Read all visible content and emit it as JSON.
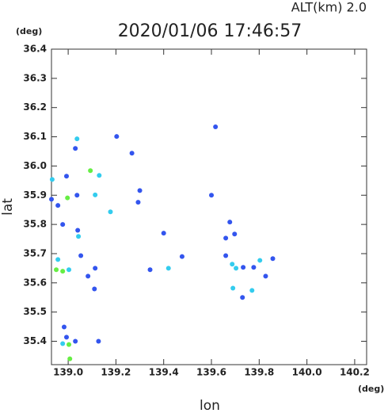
{
  "chart_data": {
    "type": "scatter",
    "title": "2020/01/06 17:46:57",
    "subtitle": "ALT(km)  2.0",
    "x_label": "lon",
    "y_label": "lat",
    "x_unit": "(deg)",
    "y_unit": "(deg)",
    "xlim": [
      138.93,
      140.25
    ],
    "ylim": [
      35.32,
      36.4
    ],
    "xticks": [
      {
        "value": 139,
        "label": "139.0"
      },
      139.2,
      139.4,
      139.6,
      139.8,
      {
        "value": 140,
        "label": "140.0"
      },
      140.2
    ],
    "yticks": [
      35.4,
      35.5,
      35.6,
      35.7,
      35.8,
      35.9,
      {
        "value": 36,
        "label": "36.0"
      },
      36.1,
      36.2,
      36.3,
      36.4
    ],
    "x": [
      139.037,
      139.03,
      138.993,
      138.933,
      139.093,
      139.13,
      138.997,
      139.037,
      139.113,
      138.93,
      138.957,
      138.977,
      139.04,
      139.043,
      138.957,
      138.95,
      138.977,
      139.003,
      139.053,
      139.113,
      139.083,
      139.11,
      138.983,
      138.993,
      138.977,
      139.003,
      139.03,
      139.007,
      139.127,
      139.203,
      139.267,
      139.3,
      139.293,
      139.177,
      139.4,
      139.477,
      139.42,
      139.343,
      139.617,
      139.6,
      139.66,
      139.697,
      139.66,
      139.687,
      139.703,
      139.733,
      139.69,
      139.73,
      139.77,
      139.803,
      139.777,
      139.857,
      139.827,
      139.677
    ],
    "y": [
      36.093,
      36.06,
      35.965,
      35.954,
      35.984,
      35.968,
      35.891,
      35.9,
      35.901,
      35.886,
      35.865,
      35.8,
      35.78,
      35.759,
      35.68,
      35.645,
      35.64,
      35.645,
      35.693,
      35.65,
      35.623,
      35.579,
      35.449,
      35.414,
      35.392,
      35.389,
      35.4,
      35.34,
      35.4,
      36.101,
      36.044,
      35.916,
      35.876,
      35.843,
      35.77,
      35.69,
      35.65,
      35.645,
      36.134,
      35.9,
      35.753,
      35.767,
      35.693,
      35.664,
      35.65,
      35.653,
      35.582,
      35.55,
      35.574,
      35.677,
      35.653,
      35.683,
      35.623,
      35.808
    ],
    "colors": [
      "#33ccee",
      "#3355ee",
      "#3355ee",
      "#33ccee",
      "#66ee44",
      "#33ccee",
      "#66ee44",
      "#3355ee",
      "#33ccee",
      "#3355ee",
      "#3355ee",
      "#3355ee",
      "#3355ee",
      "#33ccee",
      "#33ccee",
      "#66ee44",
      "#66ee44",
      "#33ccee",
      "#3355ee",
      "#3355ee",
      "#3355ee",
      "#3355ee",
      "#3355ee",
      "#3355ee",
      "#33ccee",
      "#66ee44",
      "#3355ee",
      "#66ee44",
      "#3355ee",
      "#3355ee",
      "#3355ee",
      "#3355ee",
      "#3355ee",
      "#33ccee",
      "#3355ee",
      "#3355ee",
      "#33ccee",
      "#3355ee",
      "#3355ee",
      "#3355ee",
      "#3355ee",
      "#3355ee",
      "#3355ee",
      "#33ccee",
      "#33ccee",
      "#3355ee",
      "#33ccee",
      "#3355ee",
      "#33ccee",
      "#33ccee",
      "#3355ee",
      "#3355ee",
      "#3355ee",
      "#3355ee"
    ]
  }
}
